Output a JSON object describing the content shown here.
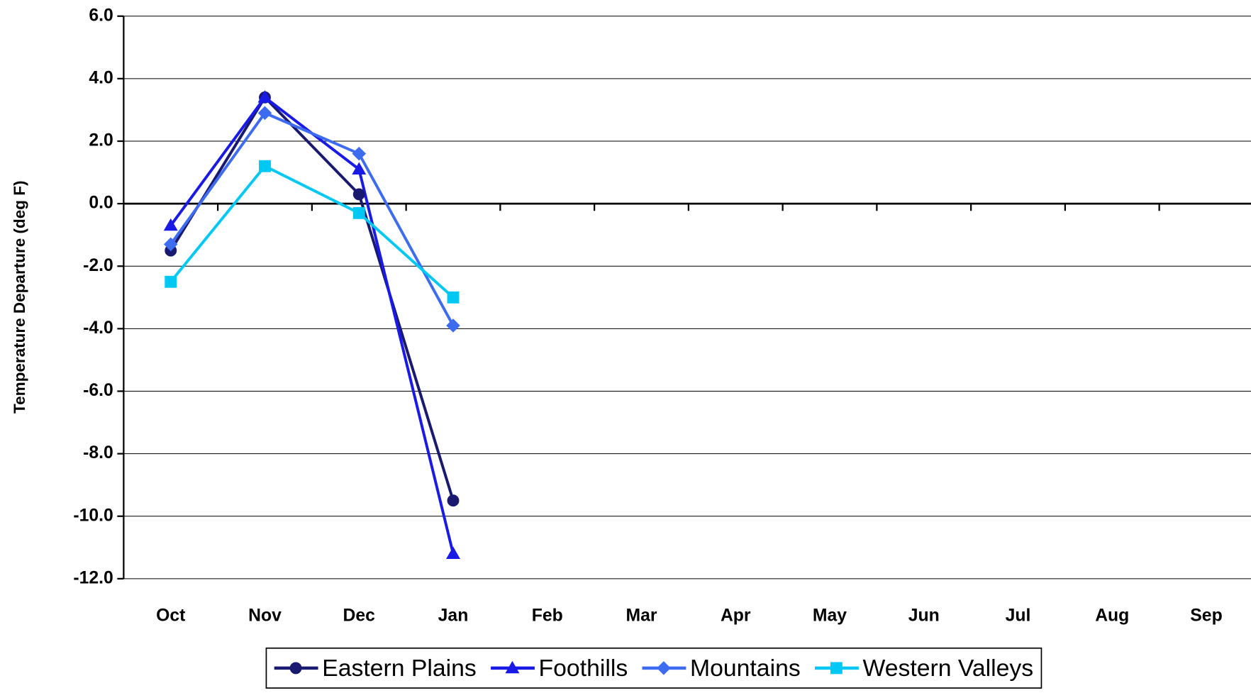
{
  "chart_data": {
    "type": "line",
    "y_label": "Temperature Departure (deg F)",
    "categories": [
      "Oct",
      "Nov",
      "Dec",
      "Jan",
      "Feb",
      "Mar",
      "Apr",
      "May",
      "Jun",
      "Jul",
      "Aug",
      "Sep"
    ],
    "series": [
      {
        "name": "Eastern Plains",
        "color": "#191970",
        "marker": "circle",
        "values": [
          -1.5,
          3.4,
          0.3,
          -9.5,
          null,
          null,
          null,
          null,
          null,
          null,
          null,
          null
        ]
      },
      {
        "name": "Foothills",
        "color": "#1a1ae6",
        "marker": "triangle",
        "values": [
          -0.7,
          3.4,
          1.1,
          -11.2,
          null,
          null,
          null,
          null,
          null,
          null,
          null,
          null
        ]
      },
      {
        "name": "Mountains",
        "color": "#3d6cf0",
        "marker": "diamond",
        "values": [
          -1.3,
          2.9,
          1.6,
          -3.9,
          null,
          null,
          null,
          null,
          null,
          null,
          null,
          null
        ]
      },
      {
        "name": "Western Valleys",
        "color": "#00c8f5",
        "marker": "square",
        "values": [
          -2.5,
          1.2,
          -0.3,
          -3.0,
          null,
          null,
          null,
          null,
          null,
          null,
          null,
          null
        ]
      }
    ],
    "ylim": [
      -12,
      6
    ],
    "yticks": [
      {
        "value": -12,
        "label": "-12.0"
      },
      {
        "value": -10,
        "label": "-10.0"
      },
      {
        "value": -8,
        "label": "-8.0"
      },
      {
        "value": -6,
        "label": "-6.0"
      },
      {
        "value": -4,
        "label": "-4.0"
      },
      {
        "value": -2,
        "label": "-2.0"
      },
      {
        "value": 0,
        "label": "0.0"
      },
      {
        "value": 2,
        "label": "2.0"
      },
      {
        "value": 4,
        "label": "4.0"
      },
      {
        "value": 6,
        "label": "6.0"
      }
    ],
    "grid": true,
    "legend": "bottom"
  }
}
